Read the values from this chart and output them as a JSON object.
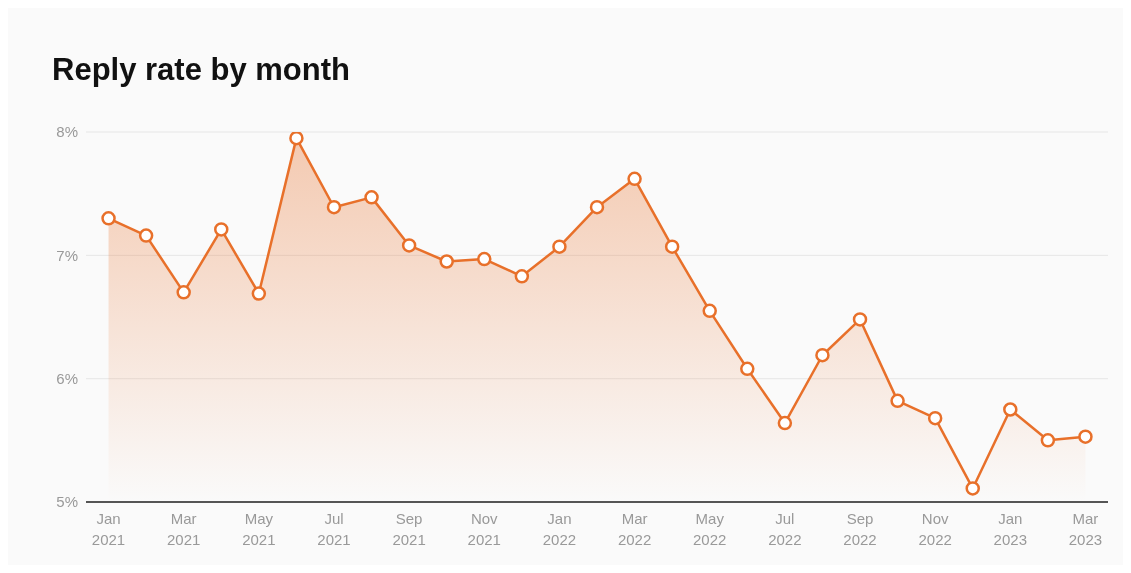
{
  "chart_data": {
    "type": "area",
    "title": "Reply rate by month",
    "categories": [
      "Jan 2021",
      null,
      "Mar 2021",
      null,
      "May 2021",
      null,
      "Jul 2021",
      null,
      "Sep 2021",
      null,
      "Nov 2021",
      null,
      "Jan 2022",
      null,
      "Mar 2022",
      null,
      "May 2022",
      null,
      "Jul 2022",
      null,
      "Sep 2022",
      null,
      "Nov 2022",
      null,
      "Jan 2023",
      null,
      "Mar 2023"
    ],
    "series": [
      {
        "color": "#e8702a",
        "values": [
          7.3,
          7.16,
          6.7,
          7.21,
          6.69,
          7.95,
          7.39,
          7.47,
          7.08,
          6.95,
          6.97,
          6.83,
          7.07,
          7.39,
          7.62,
          7.07,
          6.55,
          6.08,
          5.64,
          6.19,
          6.48,
          5.82,
          5.68,
          5.11,
          5.75,
          5.5,
          5.53
        ]
      }
    ],
    "ylim": [
      5,
      8
    ],
    "yticks": [
      {
        "value": 5,
        "label": "5%"
      },
      {
        "value": 6,
        "label": "6%"
      },
      {
        "value": 7,
        "label": "7%"
      },
      {
        "value": 8,
        "label": "8%"
      }
    ],
    "grid": "y",
    "marker": "circle",
    "line_style": "solid",
    "legend": false
  }
}
